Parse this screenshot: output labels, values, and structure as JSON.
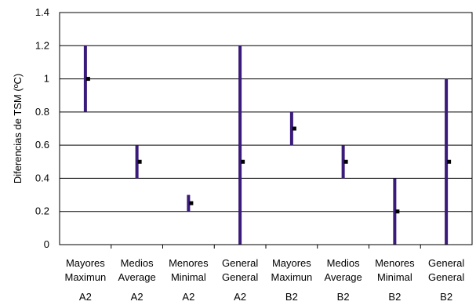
{
  "chart_data": {
    "type": "range",
    "title": "",
    "xlabel": "",
    "ylabel": "Diferencias de TSM (ºC)",
    "ylim": [
      0,
      1.4
    ],
    "yticks": [
      "0",
      "0.2",
      "0.4",
      "0.6",
      "0.8",
      "1",
      "1.2",
      "1.4"
    ],
    "grid": true,
    "legend": "none",
    "bar_color": "#3a1a7a",
    "mean_color": "#000000",
    "categories": [
      {
        "line1": "Mayores",
        "line2": "Maximun",
        "group": "A2",
        "low": 0.8,
        "high": 1.2,
        "mean": 1.0
      },
      {
        "line1": "Medios",
        "line2": "Average",
        "group": "A2",
        "low": 0.4,
        "high": 0.6,
        "mean": 0.5
      },
      {
        "line1": "Menores",
        "line2": "Minimal",
        "group": "A2",
        "low": 0.2,
        "high": 0.3,
        "mean": 0.25
      },
      {
        "line1": "General",
        "line2": "General",
        "group": "A2",
        "low": 0.0,
        "high": 1.2,
        "mean": 0.5
      },
      {
        "line1": "Mayores",
        "line2": "Maximun",
        "group": "B2",
        "low": 0.6,
        "high": 0.8,
        "mean": 0.7
      },
      {
        "line1": "Medios",
        "line2": "Average",
        "group": "B2",
        "low": 0.4,
        "high": 0.6,
        "mean": 0.5
      },
      {
        "line1": "Menores",
        "line2": "Minimal",
        "group": "B2",
        "low": 0.0,
        "high": 0.4,
        "mean": 0.2
      },
      {
        "line1": "General",
        "line2": "General",
        "group": "B2",
        "low": 0.0,
        "high": 1.0,
        "mean": 0.5
      }
    ]
  }
}
